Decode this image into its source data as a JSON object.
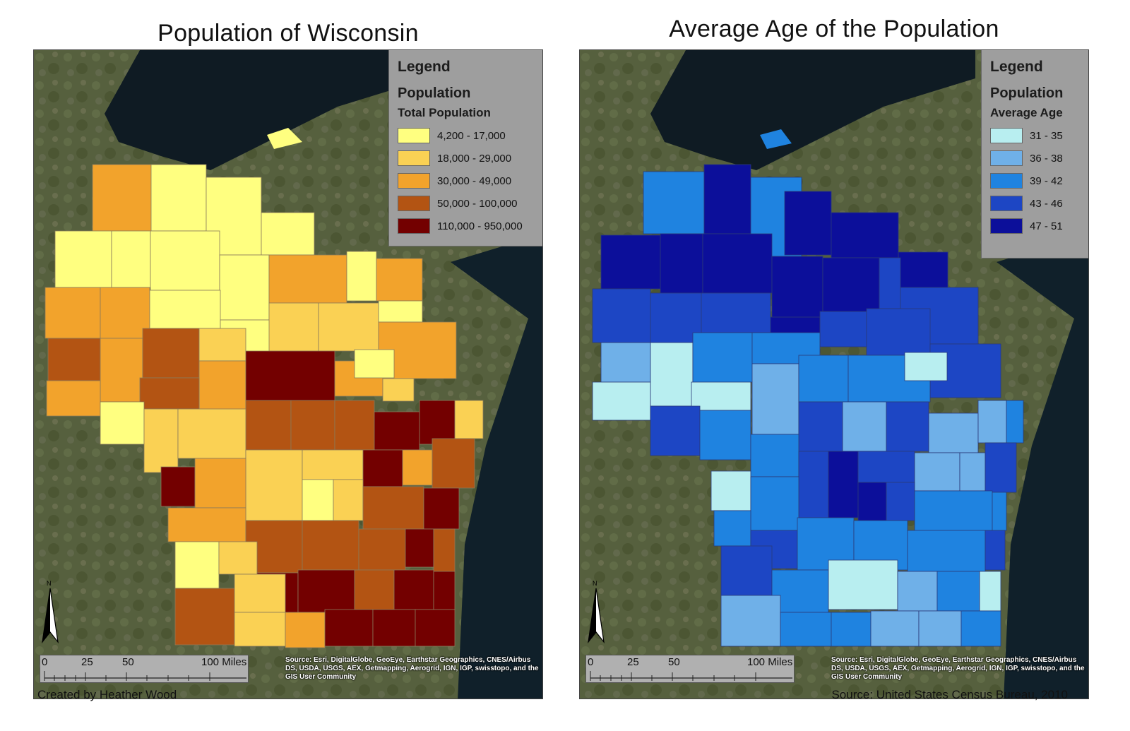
{
  "left_map": {
    "title": "Population of Wisconsin",
    "legend": {
      "title": "Legend",
      "layer": "Population",
      "field": "Total Population",
      "classes": [
        {
          "label": "4,200 - 17,000",
          "color": "#ffff80"
        },
        {
          "label": "18,000 - 29,000",
          "color": "#fad154"
        },
        {
          "label": "30,000 - 49,000",
          "color": "#f2a32c"
        },
        {
          "label": "50,000 - 100,000",
          "color": "#b35413"
        },
        {
          "label": "110,000 - 950,000",
          "color": "#730000"
        }
      ]
    },
    "scalebar": {
      "ticks": [
        "0",
        "25",
        "50",
        "100 Miles"
      ]
    },
    "source": "Source: Esri, DigitalGlobe, GeoEye, Earthstar Geographics, CNES/Airbus DS, USDA, USGS, AEX, Getmapping, Aerogrid, IGN, IGP, swisstopo, and the GIS User Community",
    "north_letter": "N"
  },
  "right_map": {
    "title": "Average Age of the Population",
    "legend": {
      "title": "Legend",
      "layer": "Population",
      "field": "Average Age",
      "classes": [
        {
          "label": "31 - 35",
          "color": "#b8eef0"
        },
        {
          "label": "36 - 38",
          "color": "#6fb0e8"
        },
        {
          "label": "39 - 42",
          "color": "#1f83e0"
        },
        {
          "label": "43 - 46",
          "color": "#1d46c4"
        },
        {
          "label": "47 - 51",
          "color": "#0c0f9a"
        }
      ]
    },
    "scalebar": {
      "ticks": [
        "0",
        "25",
        "50",
        "100 Miles"
      ]
    },
    "source": "Source: Esri, DigitalGlobe, GeoEye, Earthstar Geographics, CNES/Airbus DS, USDA, USGS, AEX, Getmapping, Aerogrid, IGN, IGP, swisstopo, and the GIS User Community",
    "north_letter": "N"
  },
  "footer": {
    "credit": "Created by Heather Wood",
    "source": "Source: United States Census Bureau, 2010"
  },
  "colors": {
    "lake": "#0d1a22",
    "land": "#4f5a3a",
    "legend_bg": "#9e9e9e"
  }
}
